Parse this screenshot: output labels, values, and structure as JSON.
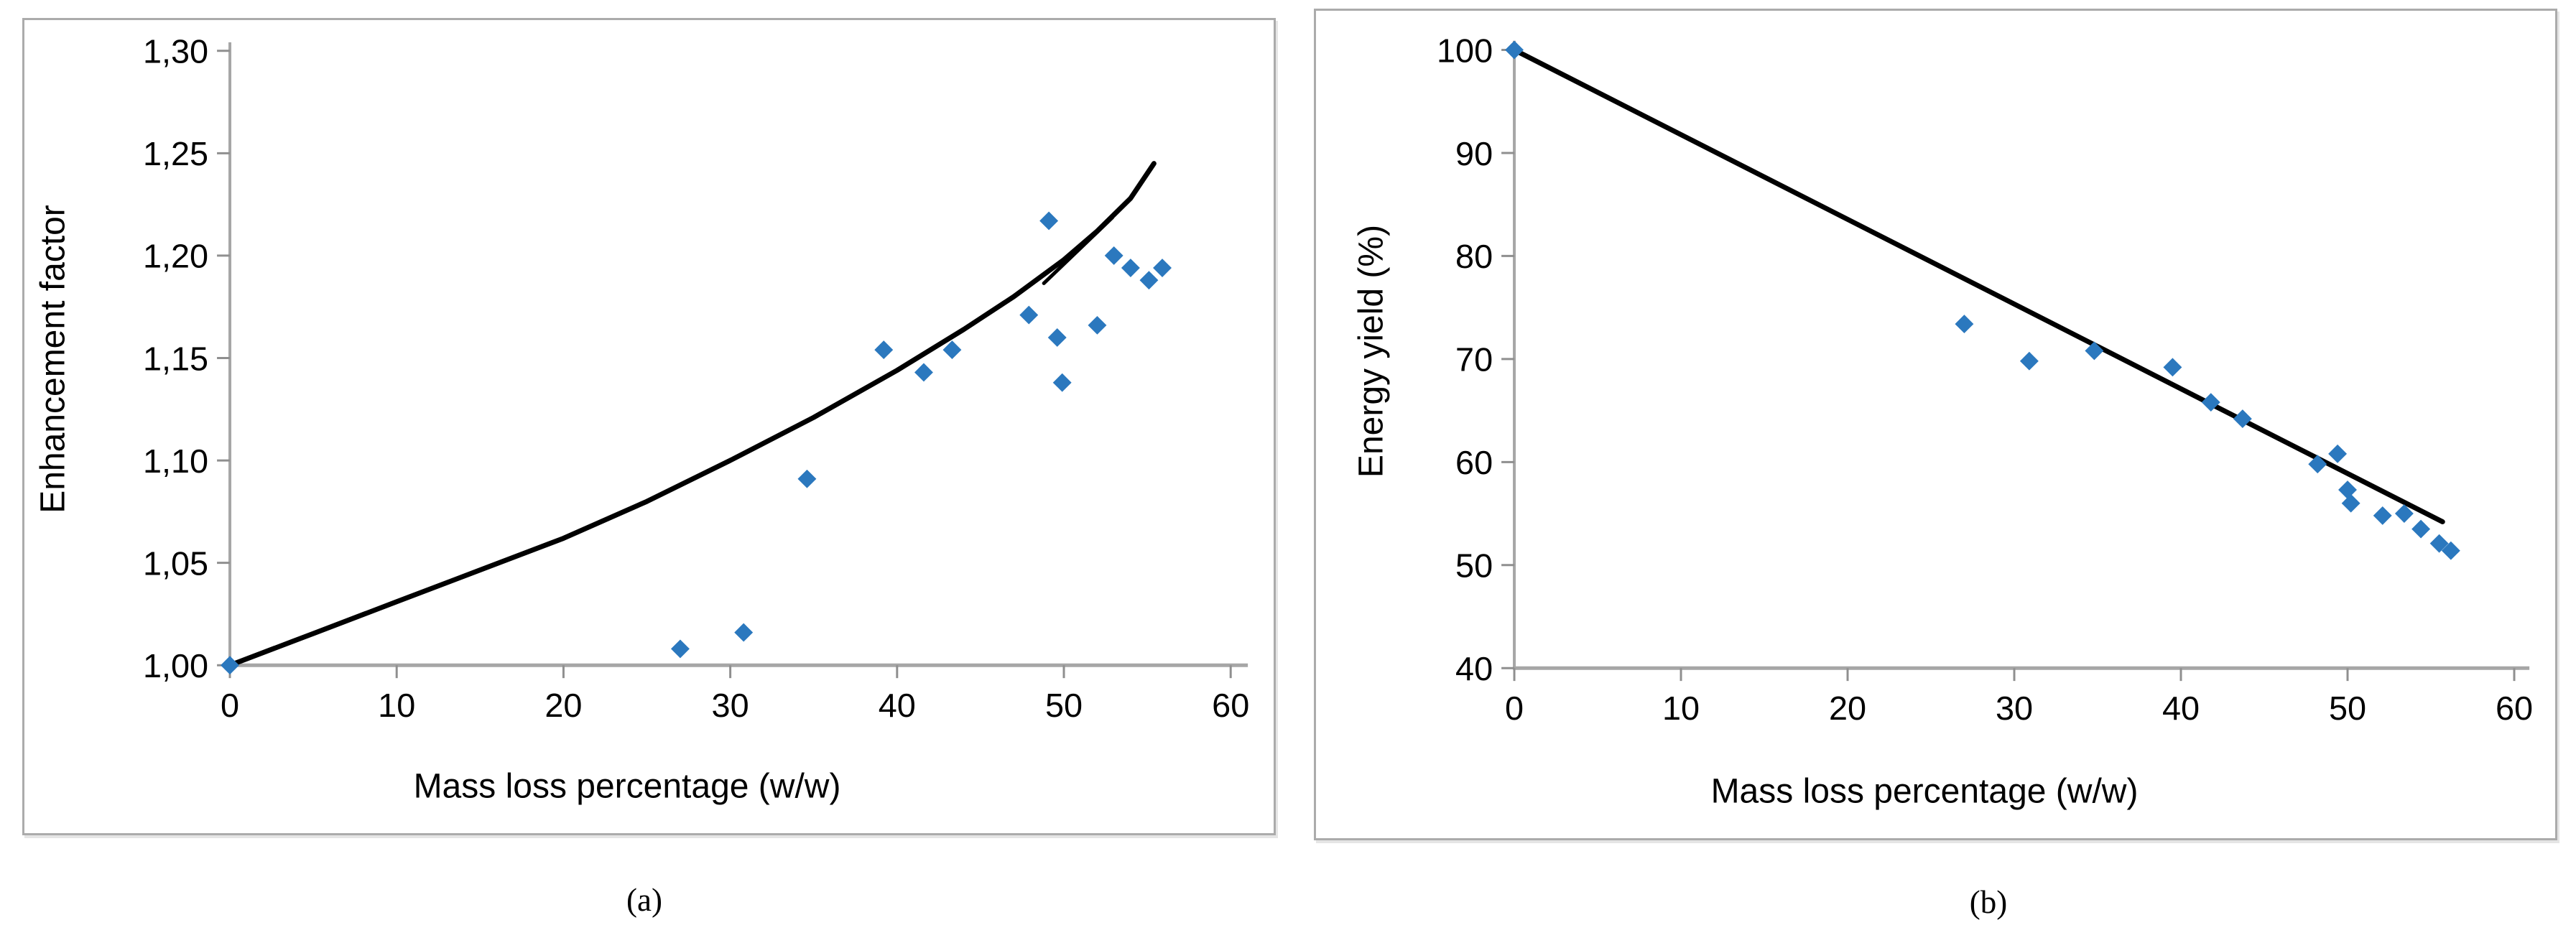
{
  "figure": {
    "captions": {
      "a": "(a)",
      "b": "(b)"
    }
  },
  "colors": {
    "marker_blue": "#2B78BE",
    "trend_black": "#000000",
    "axis_gray": "#A6A6A6",
    "tick_gray": "#8F8F8F",
    "panel_border_gray": "#ABABAB",
    "background": "#FFFFFF"
  },
  "chart_data": [
    {
      "id": "a",
      "type": "scatter",
      "title": "",
      "xlabel": "Mass loss percentage (w/w)",
      "ylabel": "Enhancement factor",
      "xlim": [
        0,
        60
      ],
      "ylim": [
        1.0,
        1.3
      ],
      "grid": false,
      "legend": "none",
      "decimal_separator": "comma",
      "x_ticks": [
        0,
        10,
        20,
        30,
        40,
        50,
        60
      ],
      "y_ticks": [
        {
          "v": 1.0,
          "label": "1,00"
        },
        {
          "v": 1.05,
          "label": "1,05"
        },
        {
          "v": 1.1,
          "label": "1,10"
        },
        {
          "v": 1.15,
          "label": "1,15"
        },
        {
          "v": 1.2,
          "label": "1,20"
        },
        {
          "v": 1.25,
          "label": "1,25"
        },
        {
          "v": 1.3,
          "label": "1,30"
        }
      ],
      "points": [
        [
          0,
          1.0
        ],
        [
          27.0,
          1.008
        ],
        [
          30.8,
          1.016
        ],
        [
          34.6,
          1.091
        ],
        [
          39.2,
          1.154
        ],
        [
          41.6,
          1.143
        ],
        [
          43.3,
          1.154
        ],
        [
          47.9,
          1.171
        ],
        [
          49.1,
          1.217
        ],
        [
          49.6,
          1.16
        ],
        [
          49.9,
          1.138
        ],
        [
          52.0,
          1.166
        ],
        [
          53.0,
          1.2
        ],
        [
          54.0,
          1.194
        ],
        [
          55.1,
          1.188
        ],
        [
          55.9,
          1.194
        ]
      ],
      "trend_line": {
        "type": "curve",
        "points": [
          [
            0,
            1.0
          ],
          [
            5,
            1.0155
          ],
          [
            10,
            1.031
          ],
          [
            15,
            1.0465
          ],
          [
            20,
            1.062
          ],
          [
            25,
            1.08
          ],
          [
            30,
            1.1
          ],
          [
            35,
            1.121
          ],
          [
            40,
            1.144
          ],
          [
            44,
            1.164
          ],
          [
            47,
            1.18
          ],
          [
            50,
            1.198
          ],
          [
            52,
            1.212
          ],
          [
            54,
            1.228
          ],
          [
            55.4,
            1.245
          ]
        ]
      },
      "trend_line_secondary": {
        "type": "segment",
        "points": [
          [
            48.8,
            1.1865
          ],
          [
            52.9,
            1.2185
          ]
        ]
      }
    },
    {
      "id": "b",
      "type": "scatter",
      "title": "",
      "xlabel": "Mass loss percentage (w/w)",
      "ylabel": "Energy yield (%)",
      "xlim": [
        0,
        60
      ],
      "ylim": [
        40,
        100
      ],
      "grid": false,
      "legend": "none",
      "x_ticks": [
        0,
        10,
        20,
        30,
        40,
        50,
        60
      ],
      "y_ticks": [
        {
          "v": 40,
          "label": "40"
        },
        {
          "v": 50,
          "label": "50"
        },
        {
          "v": 60,
          "label": "60"
        },
        {
          "v": 70,
          "label": "70"
        },
        {
          "v": 80,
          "label": "80"
        },
        {
          "v": 90,
          "label": "90"
        },
        {
          "v": 100,
          "label": "100"
        }
      ],
      "points": [
        [
          0,
          100.0
        ],
        [
          27.0,
          73.4
        ],
        [
          30.9,
          69.8
        ],
        [
          34.8,
          70.8
        ],
        [
          39.5,
          69.2
        ],
        [
          41.8,
          65.8
        ],
        [
          43.7,
          64.2
        ],
        [
          48.2,
          59.8
        ],
        [
          49.4,
          60.8
        ],
        [
          50.0,
          57.3
        ],
        [
          50.2,
          56.0
        ],
        [
          52.1,
          54.8
        ],
        [
          53.4,
          55.0
        ],
        [
          54.4,
          53.5
        ],
        [
          55.5,
          52.1
        ],
        [
          56.2,
          51.4
        ]
      ],
      "trend_line": {
        "type": "line",
        "points": [
          [
            0,
            100.0
          ],
          [
            55.7,
            54.2
          ]
        ]
      }
    }
  ]
}
